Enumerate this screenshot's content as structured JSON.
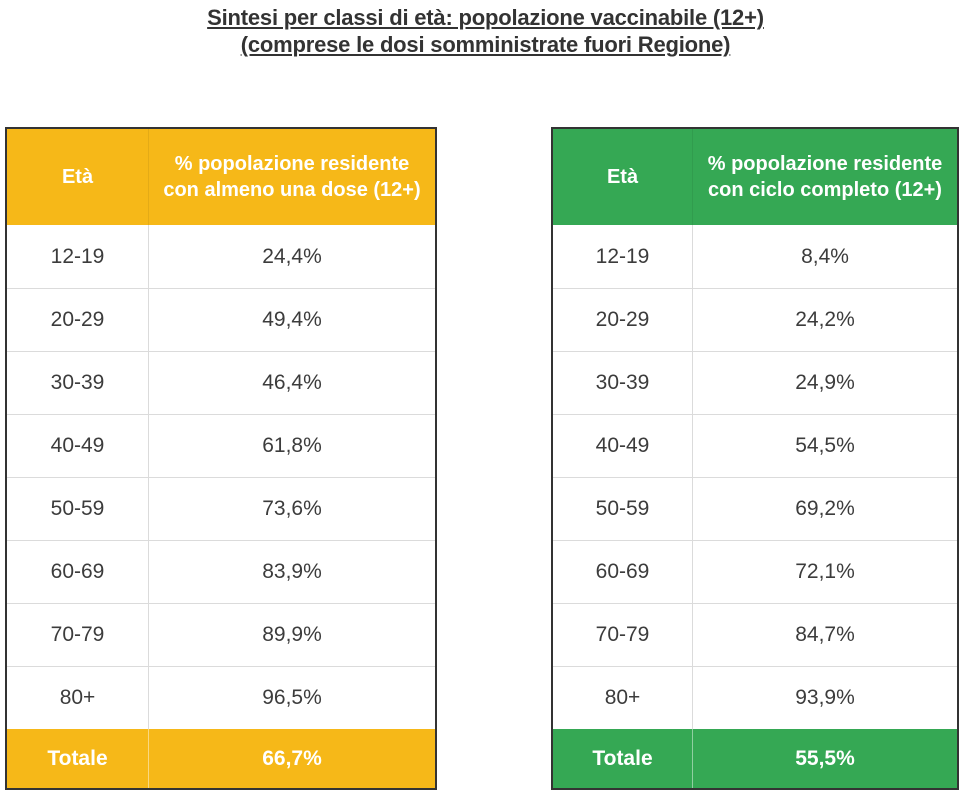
{
  "title": {
    "line1": "Sintesi per classi di età: popolazione vaccinabile (12+)",
    "line2": "(comprese le dosi somministrate fuori Regione)"
  },
  "tables": [
    {
      "name": "almeno-una-dose",
      "accent_color": "#F6B818",
      "header": {
        "col1": "Età",
        "col2": "% popolazione residente con almeno una dose (12+)"
      },
      "rows": [
        {
          "age": "12-19",
          "value": "24,4%"
        },
        {
          "age": "20-29",
          "value": "49,4%"
        },
        {
          "age": "30-39",
          "value": "46,4%"
        },
        {
          "age": "40-49",
          "value": "61,8%"
        },
        {
          "age": "50-59",
          "value": "73,6%"
        },
        {
          "age": "60-69",
          "value": "83,9%"
        },
        {
          "age": "70-79",
          "value": "89,9%"
        },
        {
          "age": "80+",
          "value": "96,5%"
        }
      ],
      "total": {
        "label": "Totale",
        "value": "66,7%"
      }
    },
    {
      "name": "ciclo-completo",
      "accent_color": "#35A854",
      "header": {
        "col1": "Età",
        "col2": "% popolazione residente con ciclo completo (12+)"
      },
      "rows": [
        {
          "age": "12-19",
          "value": "8,4%"
        },
        {
          "age": "20-29",
          "value": "24,2%"
        },
        {
          "age": "30-39",
          "value": "24,9%"
        },
        {
          "age": "40-49",
          "value": "54,5%"
        },
        {
          "age": "50-59",
          "value": "69,2%"
        },
        {
          "age": "60-69",
          "value": "72,1%"
        },
        {
          "age": "70-79",
          "value": "84,7%"
        },
        {
          "age": "80+",
          "value": "93,9%"
        }
      ],
      "total": {
        "label": "Totale",
        "value": "55,5%"
      }
    }
  ],
  "chart_data": {
    "type": "table",
    "title": "Sintesi per classi di età: popolazione vaccinabile (12+) (comprese le dosi somministrate fuori Regione)",
    "categories": [
      "12-19",
      "20-29",
      "30-39",
      "40-49",
      "50-59",
      "60-69",
      "70-79",
      "80+",
      "Totale"
    ],
    "series": [
      {
        "name": "% popolazione residente con almeno una dose (12+)",
        "values": [
          24.4,
          49.4,
          46.4,
          61.8,
          73.6,
          83.9,
          89.9,
          96.5,
          66.7
        ]
      },
      {
        "name": "% popolazione residente con ciclo completo (12+)",
        "values": [
          8.4,
          24.2,
          24.9,
          54.5,
          69.2,
          72.1,
          84.7,
          93.9,
          55.5
        ]
      }
    ]
  }
}
